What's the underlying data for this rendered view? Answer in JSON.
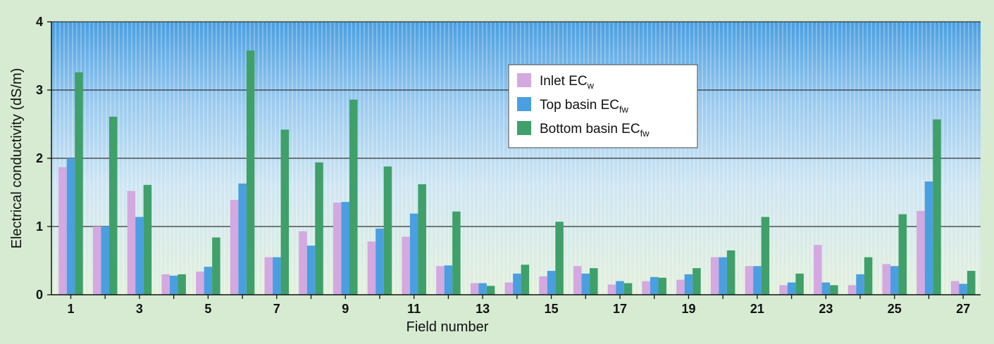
{
  "chart_data": {
    "type": "bar",
    "title": "",
    "xlabel": "Field number",
    "ylabel": "Electrical conductivity (dS/m)",
    "ylim": [
      0,
      4
    ],
    "yticks": [
      "0",
      "1",
      "2",
      "3",
      "4"
    ],
    "categories": [
      1,
      2,
      3,
      4,
      5,
      6,
      7,
      8,
      9,
      10,
      11,
      12,
      13,
      14,
      15,
      16,
      17,
      18,
      19,
      20,
      21,
      22,
      23,
      24,
      25,
      26,
      27
    ],
    "xtick_labels": [
      "1",
      "3",
      "5",
      "7",
      "9",
      "11",
      "13",
      "15",
      "17",
      "19",
      "21",
      "23",
      "25",
      "27"
    ],
    "legend_position": "top-center",
    "grid": true,
    "series": [
      {
        "name": "Inlet EC",
        "name_sub": "w",
        "color": "#d4a8e0",
        "values": [
          1.87,
          1.0,
          1.52,
          0.3,
          0.34,
          1.39,
          0.55,
          0.93,
          1.35,
          0.78,
          0.85,
          0.42,
          0.17,
          0.18,
          0.27,
          0.42,
          0.15,
          0.2,
          0.22,
          0.55,
          0.42,
          0.14,
          0.73,
          0.14,
          0.45,
          1.23,
          0.2
        ]
      },
      {
        "name": "Top basin EC",
        "name_sub": "fw",
        "color": "#4a9fe0",
        "values": [
          2.0,
          1.0,
          1.14,
          0.28,
          0.41,
          1.63,
          0.55,
          0.72,
          1.36,
          0.97,
          1.19,
          0.43,
          0.17,
          0.31,
          0.35,
          0.31,
          0.2,
          0.26,
          0.3,
          0.55,
          0.42,
          0.18,
          0.18,
          0.3,
          0.42,
          1.66,
          0.16
        ]
      },
      {
        "name": "Bottom basin EC",
        "name_sub": "fw",
        "color": "#3fa06a",
        "values": [
          3.26,
          2.61,
          1.61,
          0.3,
          0.84,
          3.58,
          2.42,
          1.94,
          2.86,
          1.88,
          1.62,
          1.22,
          0.13,
          0.44,
          1.07,
          0.39,
          0.17,
          0.25,
          0.39,
          0.65,
          1.14,
          0.31,
          0.14,
          0.55,
          1.18,
          2.57,
          0.35
        ]
      }
    ]
  }
}
